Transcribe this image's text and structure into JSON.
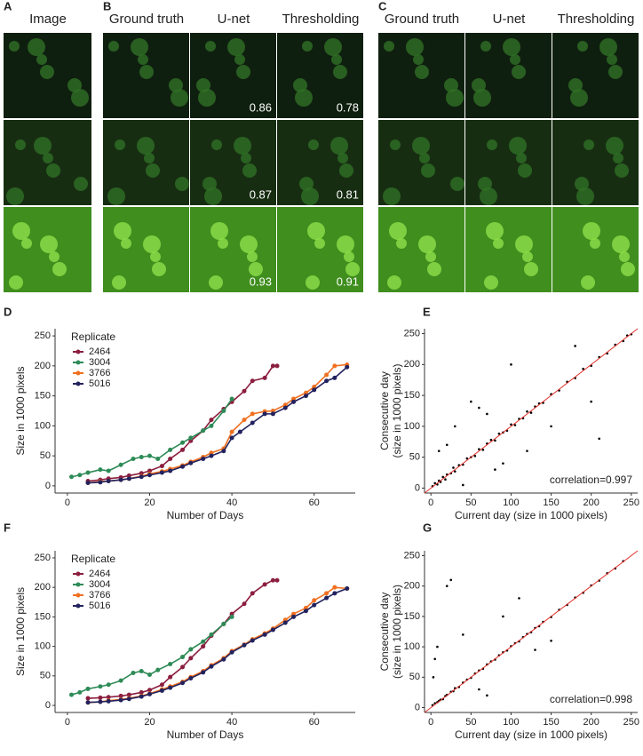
{
  "image_panels": [
    {
      "label": "A",
      "columns": [
        "Image"
      ]
    },
    {
      "label": "B",
      "columns": [
        "Ground truth",
        "U-net",
        "Thresholding"
      ],
      "scores": [
        [
          0.86,
          0.78
        ],
        [
          0.87,
          0.81
        ],
        [
          0.93,
          0.91
        ]
      ]
    },
    {
      "label": "C",
      "columns": [
        "Ground truth",
        "U-net",
        "Thresholding"
      ]
    }
  ],
  "chart_data": [
    {
      "type": "line",
      "panel": "D",
      "xlabel": "Number of Days",
      "ylabel": "Size in 1000 pixels",
      "legend_title": "Replicate",
      "xlim": [
        -3,
        70
      ],
      "xticks": [
        0,
        20,
        40,
        60
      ],
      "ylim": [
        -12,
        262
      ],
      "yticks": [
        0,
        50,
        100,
        150,
        200,
        250
      ],
      "series": [
        {
          "name": "2464",
          "color": "#8b1e3f",
          "x": [
            5,
            8,
            10,
            13,
            15,
            18,
            20,
            23,
            25,
            28,
            30,
            33,
            35,
            38,
            40,
            43,
            45,
            48,
            50,
            51
          ],
          "values": [
            8,
            10,
            12,
            14,
            17,
            21,
            25,
            33,
            45,
            60,
            75,
            92,
            110,
            128,
            140,
            158,
            175,
            180,
            200,
            200
          ]
        },
        {
          "name": "3004",
          "color": "#2e8b57",
          "x": [
            1,
            3,
            5,
            8,
            10,
            13,
            16,
            18,
            20,
            22,
            25,
            28,
            30,
            33,
            35,
            38,
            40
          ],
          "values": [
            15,
            18,
            22,
            27,
            25,
            35,
            45,
            48,
            50,
            45,
            60,
            72,
            80,
            92,
            100,
            125,
            145
          ]
        },
        {
          "name": "3766",
          "color": "#f07020",
          "x": [
            5,
            8,
            10,
            13,
            15,
            18,
            20,
            23,
            25,
            28,
            30,
            33,
            35,
            38,
            40,
            43,
            45,
            48,
            50,
            53,
            55,
            58,
            60,
            63,
            65,
            68
          ],
          "values": [
            5,
            7,
            8,
            10,
            12,
            16,
            20,
            24,
            28,
            34,
            40,
            48,
            55,
            62,
            90,
            110,
            120,
            124,
            125,
            135,
            145,
            155,
            165,
            185,
            200,
            202
          ]
        },
        {
          "name": "5016",
          "color": "#22225e",
          "x": [
            5,
            8,
            10,
            13,
            15,
            18,
            20,
            23,
            25,
            28,
            30,
            33,
            35,
            38,
            40,
            42,
            45,
            48,
            50,
            53,
            55,
            58,
            60,
            63,
            65,
            68
          ],
          "values": [
            5,
            6,
            8,
            10,
            12,
            15,
            18,
            22,
            25,
            32,
            38,
            45,
            50,
            58,
            80,
            90,
            105,
            120,
            120,
            130,
            140,
            150,
            160,
            175,
            180,
            198
          ]
        }
      ]
    },
    {
      "type": "scatter",
      "panel": "E",
      "xlabel": "Current day (size in 1000 pixels)",
      "ylabel": [
        "Consecutive day",
        "(size in 1000 pixels)"
      ],
      "annotation": "correlation=0.997",
      "xlim": [
        -8,
        258
      ],
      "xticks": [
        0,
        50,
        100,
        150,
        200,
        250
      ],
      "ylim": [
        -8,
        258
      ],
      "yticks": [
        0,
        50,
        100,
        150,
        200,
        250
      ],
      "color": "#000000",
      "line_color": "#e0302a",
      "x": [
        2,
        5,
        8,
        10,
        12,
        15,
        18,
        20,
        25,
        28,
        30,
        35,
        40,
        45,
        50,
        55,
        60,
        65,
        70,
        75,
        80,
        85,
        90,
        95,
        100,
        105,
        110,
        115,
        120,
        125,
        130,
        135,
        140,
        150,
        160,
        170,
        180,
        190,
        200,
        210,
        220,
        230,
        240,
        245,
        250,
        10,
        30,
        50,
        70,
        100,
        80,
        120,
        150,
        200,
        210,
        20,
        60,
        180,
        40,
        90
      ],
      "y": [
        3,
        8,
        6,
        12,
        10,
        18,
        14,
        22,
        24,
        33,
        27,
        37,
        38,
        48,
        50,
        52,
        63,
        62,
        72,
        78,
        77,
        88,
        90,
        93,
        103,
        102,
        112,
        113,
        124,
        122,
        132,
        137,
        138,
        152,
        158,
        172,
        178,
        193,
        198,
        212,
        218,
        232,
        238,
        247,
        249,
        60,
        100,
        140,
        120,
        200,
        30,
        60,
        100,
        140,
        80,
        70,
        130,
        230,
        5,
        40
      ]
    },
    {
      "type": "line",
      "panel": "F",
      "xlabel": "Number of Days",
      "ylabel": "Size in 1000 pixels",
      "legend_title": "Replicate",
      "xlim": [
        -3,
        70
      ],
      "xticks": [
        0,
        20,
        40,
        60
      ],
      "ylim": [
        -12,
        262
      ],
      "yticks": [
        0,
        50,
        100,
        150,
        200,
        250
      ],
      "series": [
        {
          "name": "2464",
          "color": "#8b1e3f",
          "x": [
            5,
            8,
            10,
            13,
            15,
            18,
            20,
            23,
            25,
            28,
            30,
            33,
            35,
            38,
            40,
            43,
            45,
            48,
            50,
            51
          ],
          "values": [
            12,
            13,
            14,
            16,
            18,
            22,
            26,
            35,
            48,
            65,
            80,
            100,
            118,
            138,
            155,
            172,
            190,
            205,
            212,
            212
          ]
        },
        {
          "name": "3004",
          "color": "#2e8b57",
          "x": [
            1,
            3,
            5,
            8,
            10,
            13,
            16,
            18,
            20,
            22,
            25,
            28,
            30,
            33,
            35,
            38,
            40
          ],
          "values": [
            18,
            22,
            28,
            32,
            35,
            42,
            55,
            58,
            52,
            60,
            70,
            82,
            95,
            108,
            120,
            138,
            150
          ]
        },
        {
          "name": "3766",
          "color": "#f07020",
          "x": [
            5,
            8,
            10,
            13,
            15,
            18,
            20,
            23,
            25,
            28,
            30,
            33,
            35,
            38,
            40,
            43,
            45,
            48,
            50,
            53,
            55,
            58,
            60,
            63,
            65,
            68
          ],
          "values": [
            5,
            6,
            8,
            10,
            12,
            16,
            20,
            27,
            32,
            40,
            48,
            58,
            68,
            80,
            92,
            103,
            112,
            122,
            130,
            145,
            155,
            165,
            178,
            190,
            200,
            198
          ]
        },
        {
          "name": "5016",
          "color": "#22225e",
          "x": [
            5,
            8,
            10,
            13,
            15,
            18,
            20,
            23,
            25,
            28,
            30,
            33,
            35,
            38,
            40,
            43,
            45,
            48,
            50,
            53,
            55,
            58,
            60,
            63,
            65,
            68
          ],
          "values": [
            5,
            6,
            7,
            9,
            11,
            15,
            19,
            25,
            30,
            38,
            46,
            56,
            66,
            78,
            90,
            102,
            110,
            120,
            128,
            140,
            150,
            160,
            170,
            182,
            190,
            198
          ]
        }
      ]
    },
    {
      "type": "scatter",
      "panel": "G",
      "xlabel": "Current day (size in 1000 pixels)",
      "ylabel": [
        "Consecutive day",
        "(size in 1000 pixels)"
      ],
      "annotation": "correlation=0.998",
      "xlim": [
        -8,
        258
      ],
      "xticks": [
        0,
        50,
        100,
        150,
        200,
        250
      ],
      "ylim": [
        -8,
        258
      ],
      "yticks": [
        0,
        50,
        100,
        150,
        200,
        250
      ],
      "color": "#000000",
      "line_color": "#e0302a",
      "x": [
        2,
        5,
        8,
        10,
        12,
        15,
        18,
        20,
        25,
        28,
        30,
        35,
        40,
        45,
        50,
        55,
        60,
        65,
        70,
        75,
        80,
        85,
        90,
        95,
        100,
        105,
        110,
        115,
        120,
        125,
        130,
        135,
        140,
        150,
        160,
        170,
        180,
        190,
        200,
        210,
        220,
        230,
        240,
        20,
        25,
        5,
        40,
        60,
        110,
        150,
        90,
        130,
        3,
        8,
        70
      ],
      "y": [
        4,
        7,
        9,
        11,
        13,
        14,
        19,
        21,
        26,
        27,
        32,
        34,
        41,
        46,
        49,
        56,
        61,
        64,
        71,
        76,
        79,
        86,
        91,
        94,
        101,
        106,
        109,
        116,
        121,
        124,
        131,
        134,
        141,
        149,
        161,
        169,
        181,
        189,
        201,
        209,
        221,
        229,
        241,
        200,
        210,
        80,
        120,
        30,
        180,
        110,
        150,
        95,
        50,
        100,
        20
      ]
    }
  ]
}
